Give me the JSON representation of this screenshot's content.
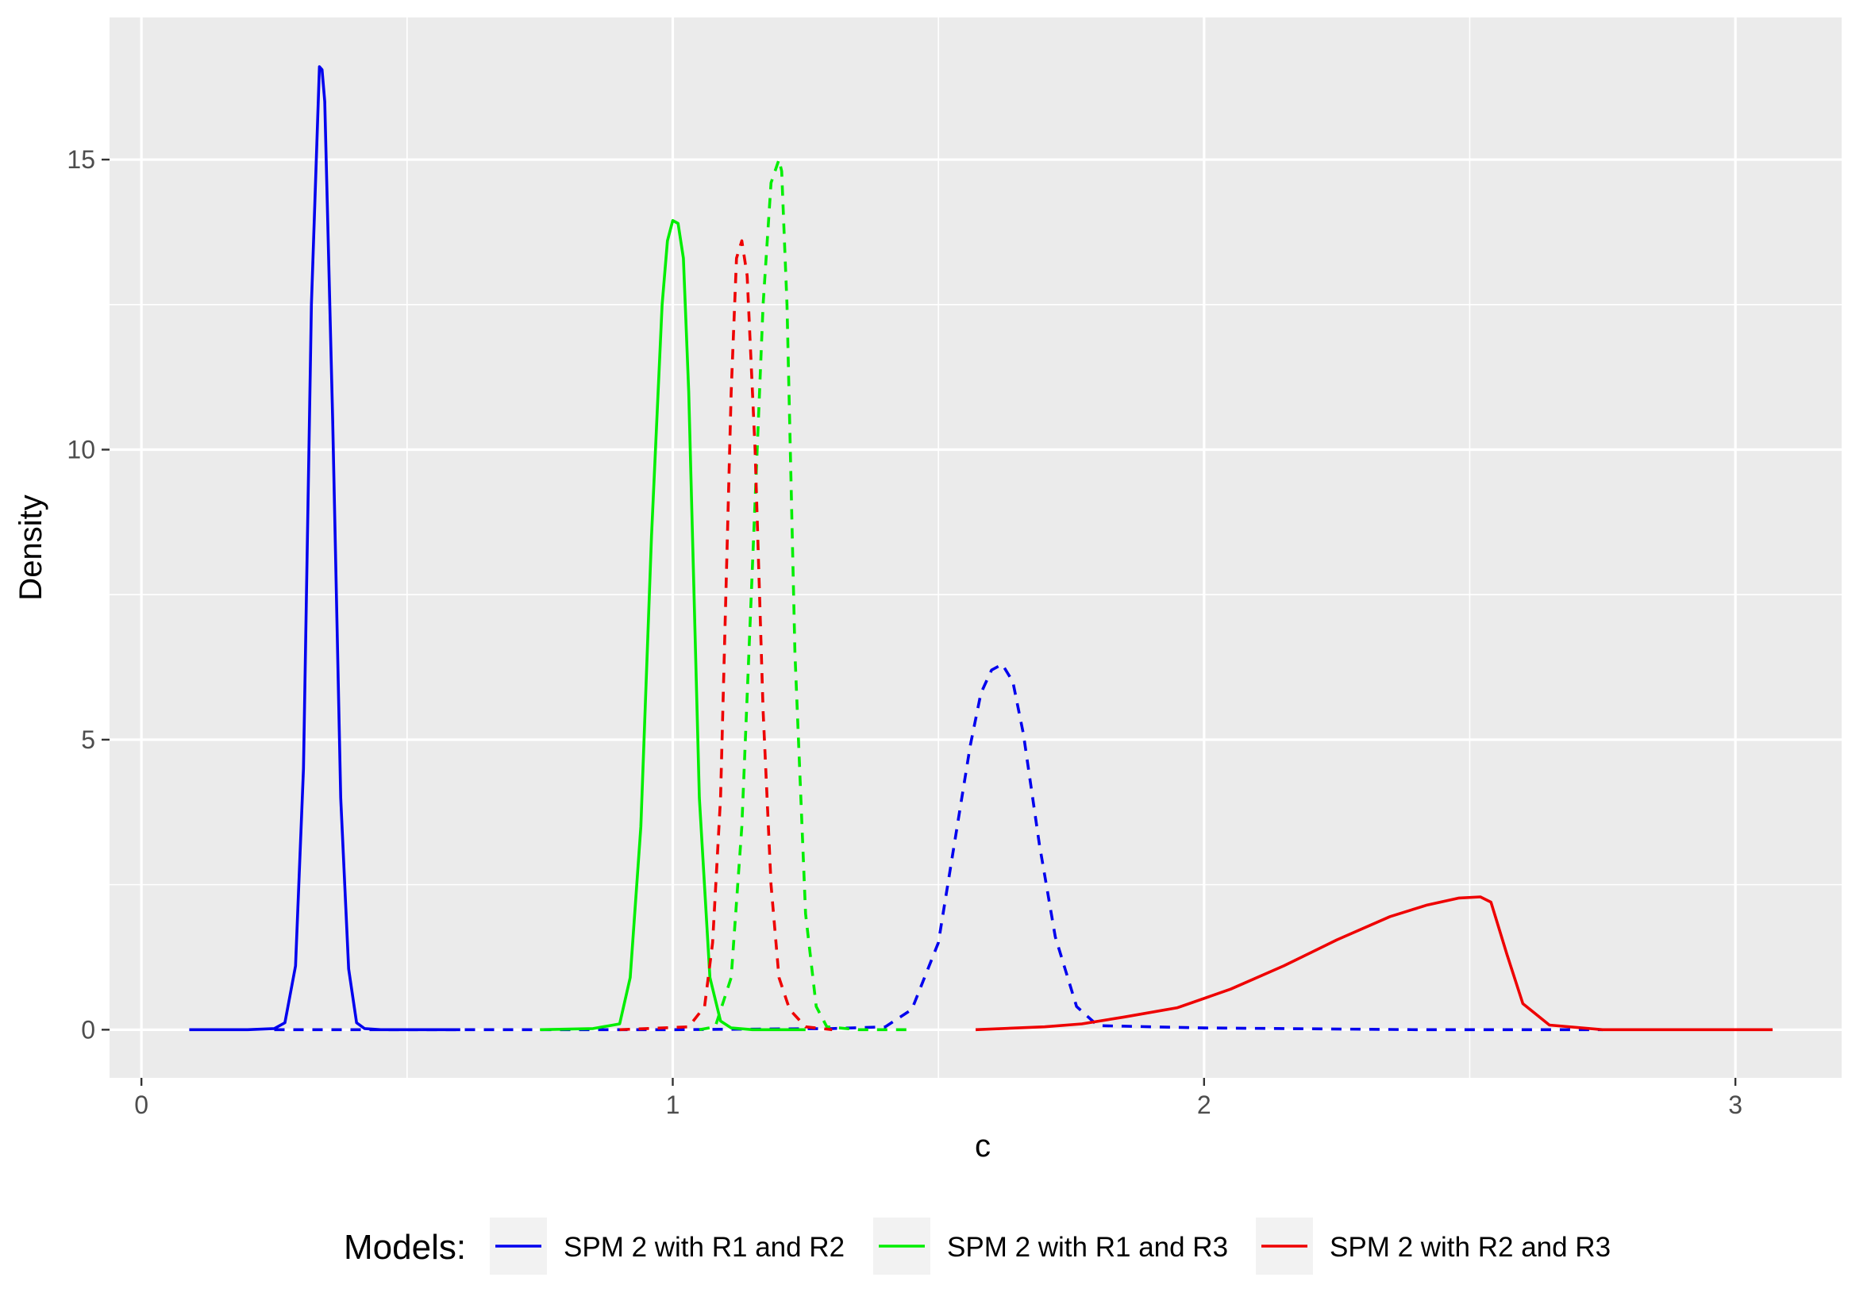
{
  "chart_data": {
    "type": "line",
    "title": "",
    "xlabel": "c",
    "ylabel": "Density",
    "xlim": [
      -0.06,
      3.2
    ],
    "ylim": [
      -0.83,
      17.45
    ],
    "x_ticks": [
      0,
      1,
      2,
      3
    ],
    "x_tick_labels": [
      "0",
      "1",
      "2",
      "3"
    ],
    "x_minor_ticks": [
      0.5,
      1.5,
      2.5
    ],
    "y_ticks": [
      0,
      5,
      10,
      15
    ],
    "y_tick_labels": [
      "0",
      "5",
      "10",
      "15"
    ],
    "y_minor_ticks": [
      2.5,
      7.5,
      12.5
    ],
    "grid": true,
    "legend": {
      "title": "Models:",
      "position": "bottom",
      "entries": [
        {
          "label": "SPM 2 with R1 and R2",
          "color": "#0000ee"
        },
        {
          "label": "SPM 2 with R1 and R3",
          "color": "#00ee00"
        },
        {
          "label": "SPM 2 with R2 and R3",
          "color": "#ee0000"
        }
      ]
    },
    "series": [
      {
        "model": "SPM 2 with R1 and R2",
        "line": "solid",
        "color": "#0000ee",
        "x": [
          0.09,
          0.15,
          0.2,
          0.25,
          0.27,
          0.29,
          0.305,
          0.32,
          0.335,
          0.34,
          0.345,
          0.36,
          0.375,
          0.39,
          0.405,
          0.42,
          0.45,
          0.5,
          0.6
        ],
        "y": [
          0,
          0,
          0,
          0.02,
          0.12,
          1.1,
          4.5,
          12.5,
          16.6,
          16.55,
          16.0,
          10.5,
          4.0,
          1.05,
          0.12,
          0.02,
          0,
          0,
          0
        ]
      },
      {
        "model": "SPM 2 with R1 and R2",
        "line": "dashed",
        "color": "#0000ee",
        "x": [
          0.25,
          0.6,
          1.0,
          1.3,
          1.4,
          1.45,
          1.5,
          1.53,
          1.56,
          1.58,
          1.6,
          1.62,
          1.64,
          1.66,
          1.69,
          1.72,
          1.76,
          1.8,
          2.0,
          2.4,
          2.75
        ],
        "y": [
          0,
          0,
          0,
          0.02,
          0.05,
          0.35,
          1.5,
          3.2,
          4.9,
          5.8,
          6.2,
          6.3,
          6.0,
          5.1,
          3.2,
          1.6,
          0.4,
          0.07,
          0.03,
          0,
          0
        ]
      },
      {
        "model": "SPM 2 with R1 and R3",
        "line": "solid",
        "color": "#00ee00",
        "x": [
          0.75,
          0.85,
          0.9,
          0.92,
          0.94,
          0.96,
          0.98,
          0.99,
          1.0,
          1.01,
          1.02,
          1.03,
          1.05,
          1.07,
          1.09,
          1.11,
          1.15,
          1.25
        ],
        "y": [
          0,
          0.02,
          0.1,
          0.9,
          3.5,
          8.5,
          12.5,
          13.6,
          13.95,
          13.9,
          13.3,
          11.0,
          4.0,
          0.9,
          0.15,
          0.03,
          0,
          0
        ]
      },
      {
        "model": "SPM 2 with R1 and R3",
        "line": "dashed",
        "color": "#00ee00",
        "x": [
          1.05,
          1.08,
          1.11,
          1.13,
          1.15,
          1.17,
          1.185,
          1.2,
          1.205,
          1.215,
          1.23,
          1.25,
          1.27,
          1.29,
          1.35,
          1.44
        ],
        "y": [
          0,
          0.05,
          0.9,
          3.5,
          8.0,
          12.5,
          14.6,
          15.0,
          14.8,
          12.5,
          6.5,
          2.0,
          0.4,
          0.05,
          0,
          0
        ]
      },
      {
        "model": "SPM 2 with R2 and R3",
        "line": "solid",
        "color": "#ee0000",
        "x": [
          1.57,
          1.7,
          1.77,
          1.85,
          1.95,
          2.05,
          2.15,
          2.25,
          2.35,
          2.42,
          2.48,
          2.52,
          2.54,
          2.57,
          2.6,
          2.65,
          2.75,
          2.9,
          3.07
        ],
        "y": [
          0,
          0.05,
          0.1,
          0.22,
          0.38,
          0.7,
          1.1,
          1.55,
          1.95,
          2.15,
          2.27,
          2.29,
          2.2,
          1.3,
          0.45,
          0.08,
          0,
          0,
          0
        ]
      },
      {
        "model": "SPM 2 with R2 and R3",
        "line": "dashed",
        "color": "#ee0000",
        "x": [
          0.9,
          1.03,
          1.06,
          1.075,
          1.09,
          1.1,
          1.11,
          1.12,
          1.13,
          1.14,
          1.155,
          1.17,
          1.185,
          1.2,
          1.22,
          1.25,
          1.3
        ],
        "y": [
          0,
          0.05,
          0.4,
          1.5,
          4.0,
          7.5,
          11.0,
          13.3,
          13.6,
          13.0,
          10.0,
          5.5,
          2.5,
          0.9,
          0.35,
          0.05,
          0
        ]
      }
    ]
  }
}
